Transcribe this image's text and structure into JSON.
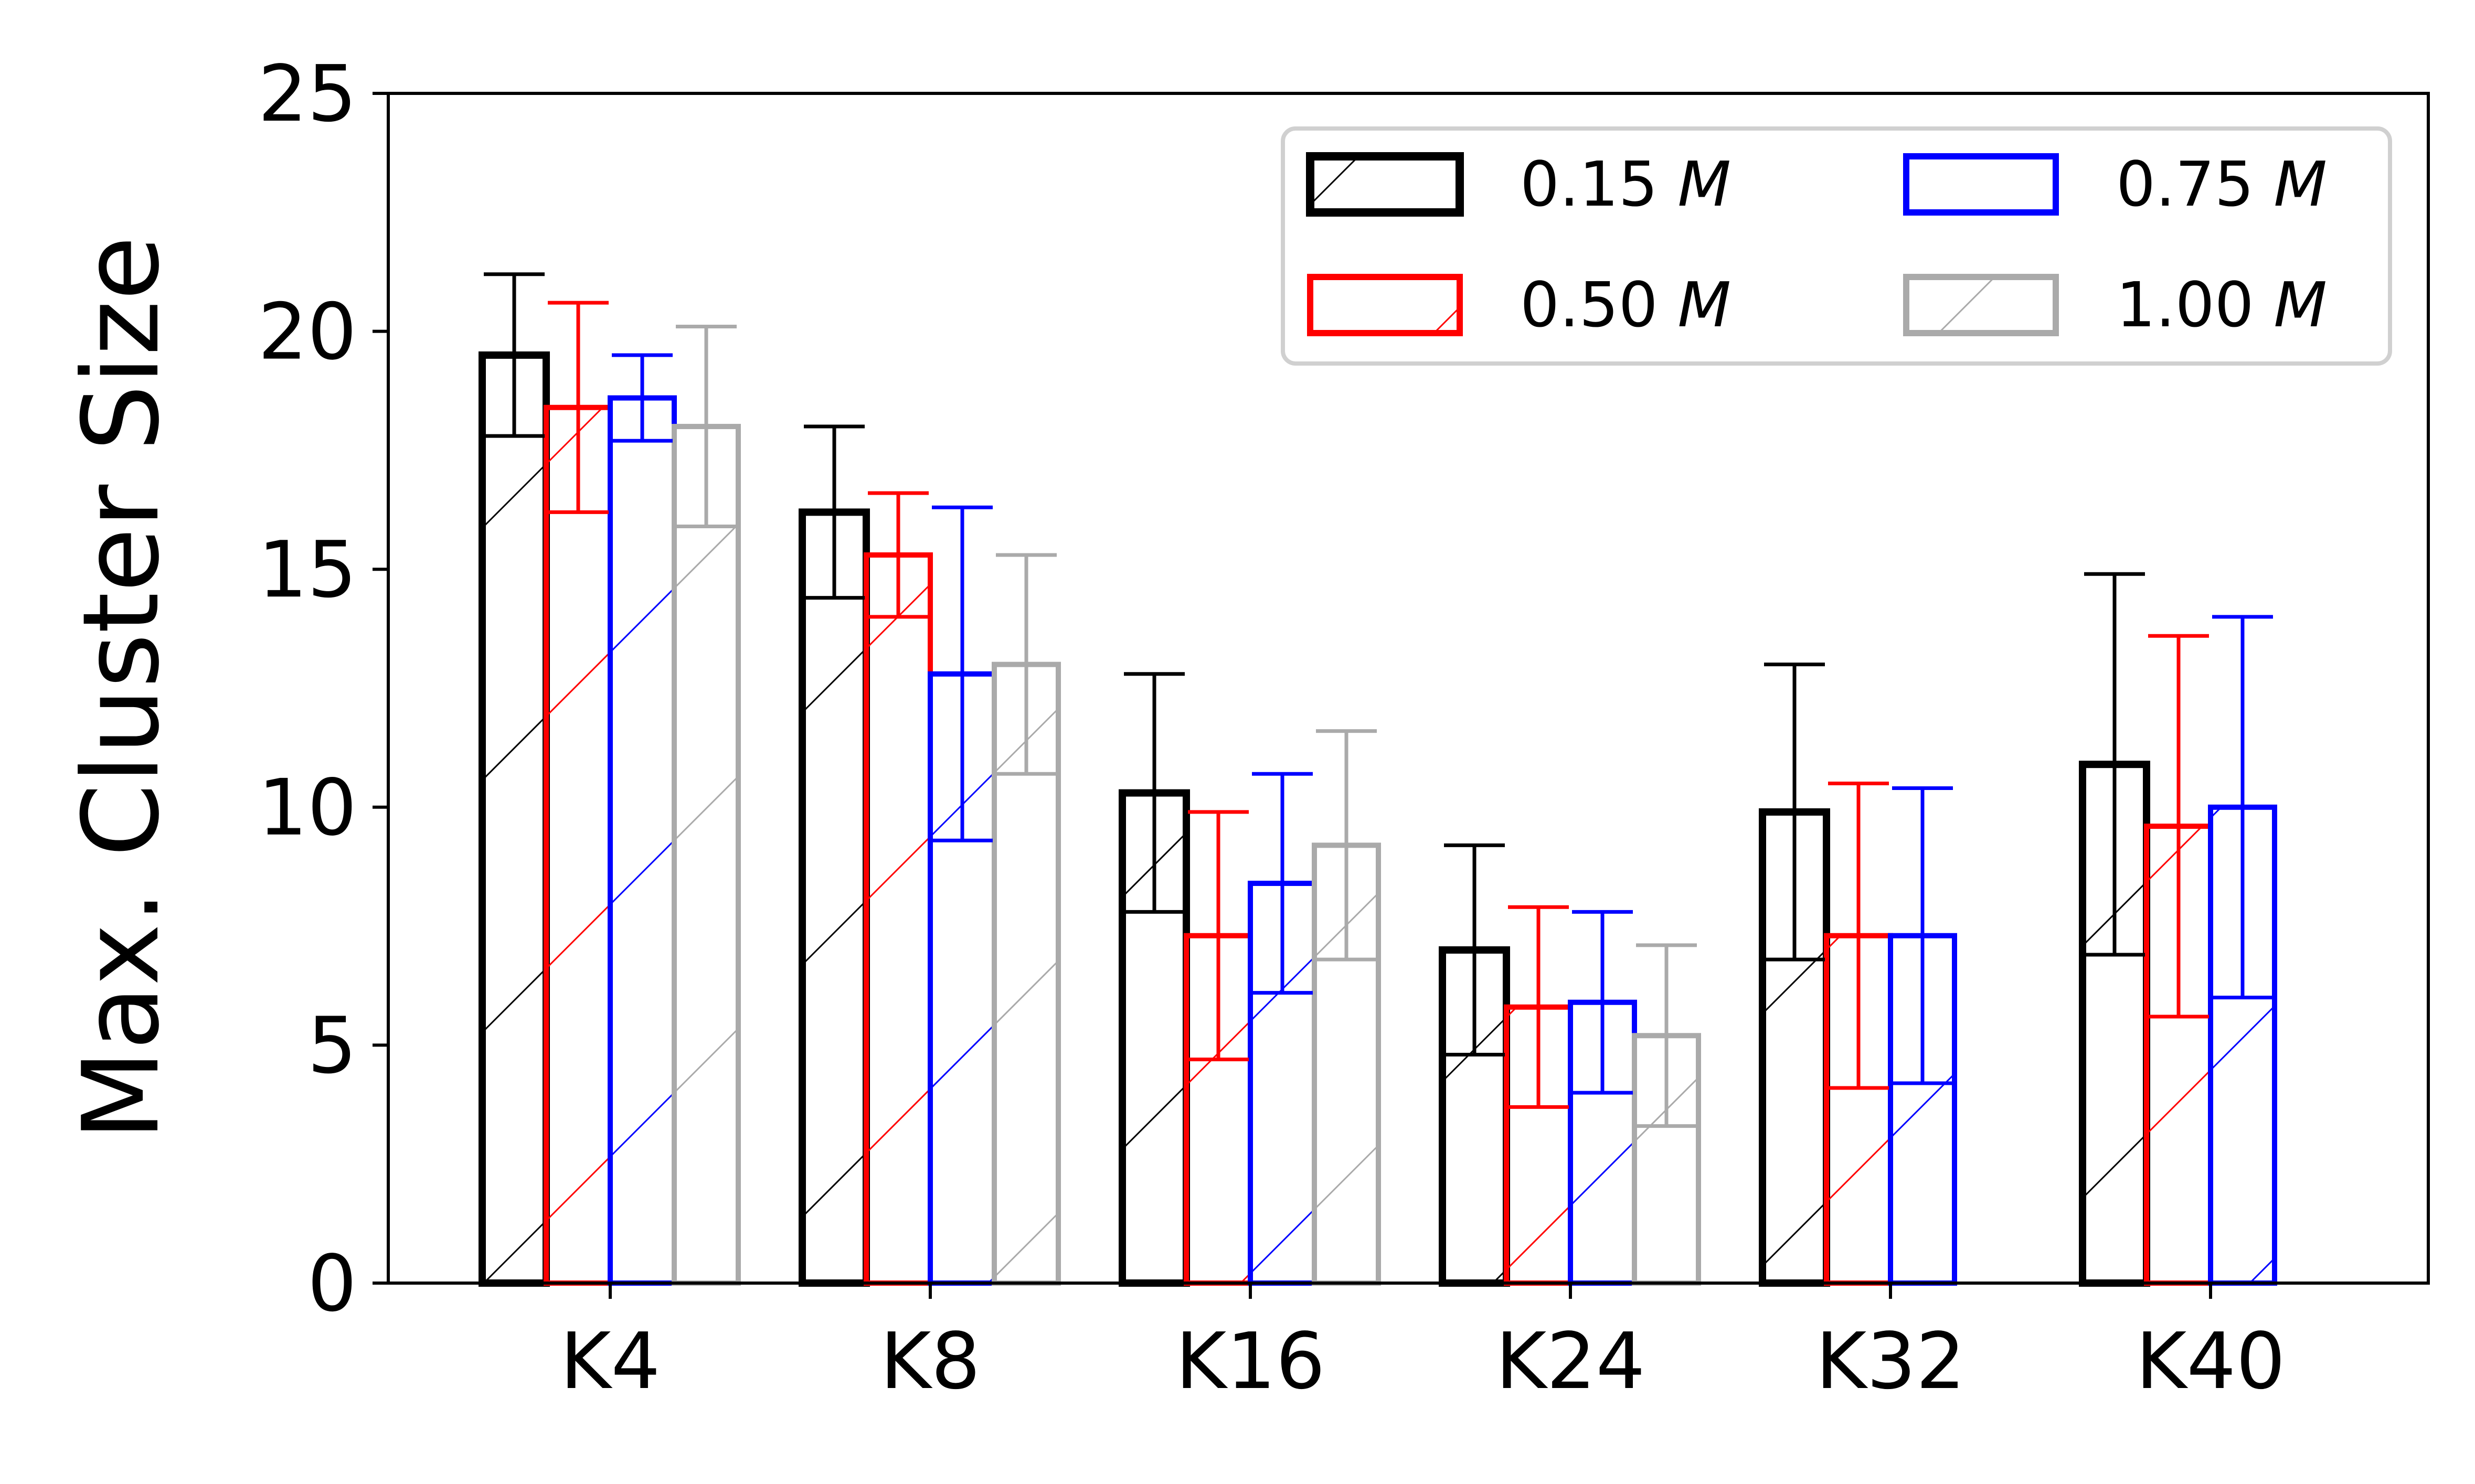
{
  "chart_data": {
    "type": "bar",
    "title": "",
    "xlabel": "",
    "ylabel": "Max. Cluster Size",
    "ylim": [
      0,
      25
    ],
    "yticks": [
      "0",
      "5",
      "10",
      "15",
      "20",
      "25"
    ],
    "categories": [
      "K4",
      "K8",
      "K16",
      "K24",
      "K32",
      "K40"
    ],
    "legend_position": "top-right",
    "legend_columns": 2,
    "grid": false,
    "hatch": "diagonal",
    "series": [
      {
        "name": "0.15",
        "unit": "M",
        "color": "#000000",
        "values": [
          19.5,
          16.2,
          10.3,
          7.0,
          9.9,
          10.9
        ],
        "error": [
          1.7,
          1.8,
          2.5,
          2.2,
          3.1,
          4.0
        ]
      },
      {
        "name": "0.50",
        "unit": "M",
        "color": "#ff0000",
        "values": [
          18.4,
          15.3,
          7.3,
          5.8,
          7.3,
          9.6
        ],
        "error": [
          2.2,
          1.3,
          2.6,
          2.1,
          3.2,
          4.0
        ]
      },
      {
        "name": "0.75",
        "unit": "M",
        "color": "#0000ff",
        "values": [
          18.6,
          12.8,
          8.4,
          5.9,
          7.3,
          10.0
        ],
        "error": [
          0.9,
          3.5,
          2.3,
          1.9,
          3.1,
          4.0
        ]
      },
      {
        "name": "1.00",
        "unit": "M",
        "color": "#aaaaaa",
        "values": [
          18.0,
          13.0,
          9.2,
          5.2,
          0,
          0
        ],
        "error": [
          2.1,
          2.3,
          2.4,
          1.9,
          0,
          0
        ]
      }
    ]
  }
}
